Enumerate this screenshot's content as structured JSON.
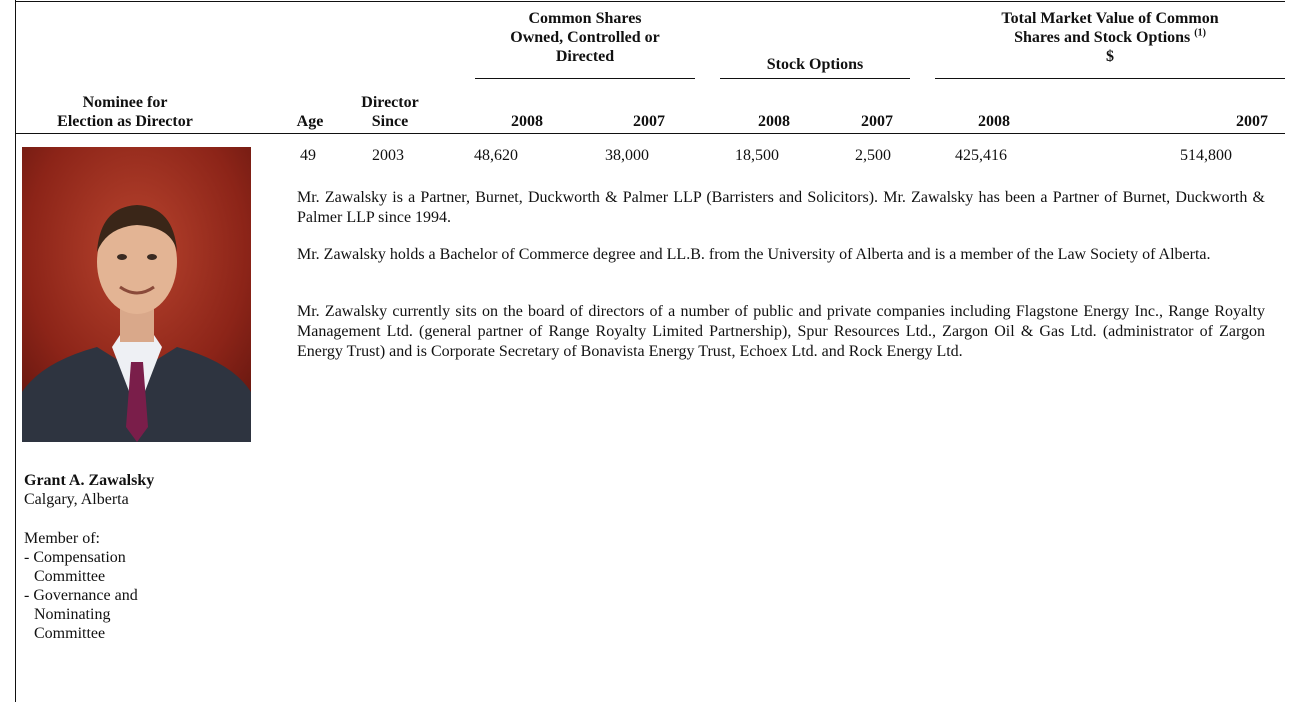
{
  "table": {
    "group_headers": [
      {
        "lines": [
          "Common Shares",
          "Owned, Controlled or",
          "Directed"
        ]
      },
      {
        "lines": [
          "Stock Options"
        ]
      },
      {
        "lines": [
          "Total Market Value of Common",
          "Shares and Stock Options"
        ],
        "note": "(1)",
        "unit": "$"
      }
    ],
    "columns": [
      [
        "Nominee for",
        "Election as Director"
      ],
      [
        "Age"
      ],
      [
        "Director",
        "Since"
      ],
      [
        "2008"
      ],
      [
        "2007"
      ],
      [
        "2008"
      ],
      [
        "2007"
      ],
      [
        "2008"
      ],
      [
        "2007"
      ]
    ],
    "row": [
      "49",
      "2003",
      "48,620",
      "38,000",
      "18,500",
      "2,500",
      "425,416",
      "514,800"
    ]
  },
  "nominee": {
    "name": "Grant A. Zawalsky",
    "location": "Calgary, Alberta",
    "membership_heading": "Member of:",
    "committees": [
      [
        "- Compensation",
        "Committee"
      ],
      [
        "- Governance and",
        "Nominating",
        "Committee"
      ]
    ]
  },
  "biography": [
    "Mr. Zawalsky is a Partner, Burnet, Duckworth & Palmer LLP (Barristers and Solicitors). Mr. Zawalsky has been a Partner of Burnet, Duckworth & Palmer LLP since 1994.",
    "Mr. Zawalsky holds a Bachelor of Commerce degree and LL.B. from the University of Alberta and is a member of the Law Society of Alberta.",
    "Mr. Zawalsky currently sits on the board of directors of a number of public and private companies including Flagstone Energy Inc., Range Royalty Management Ltd. (general partner of Range Royalty Limited Partnership), Spur Resources Ltd., Zargon Oil & Gas Ltd. (administrator of Zargon Energy Trust) and is Corporate Secretary of Bonavista Energy Trust, Echoex Ltd. and Rock Energy Ltd."
  ]
}
